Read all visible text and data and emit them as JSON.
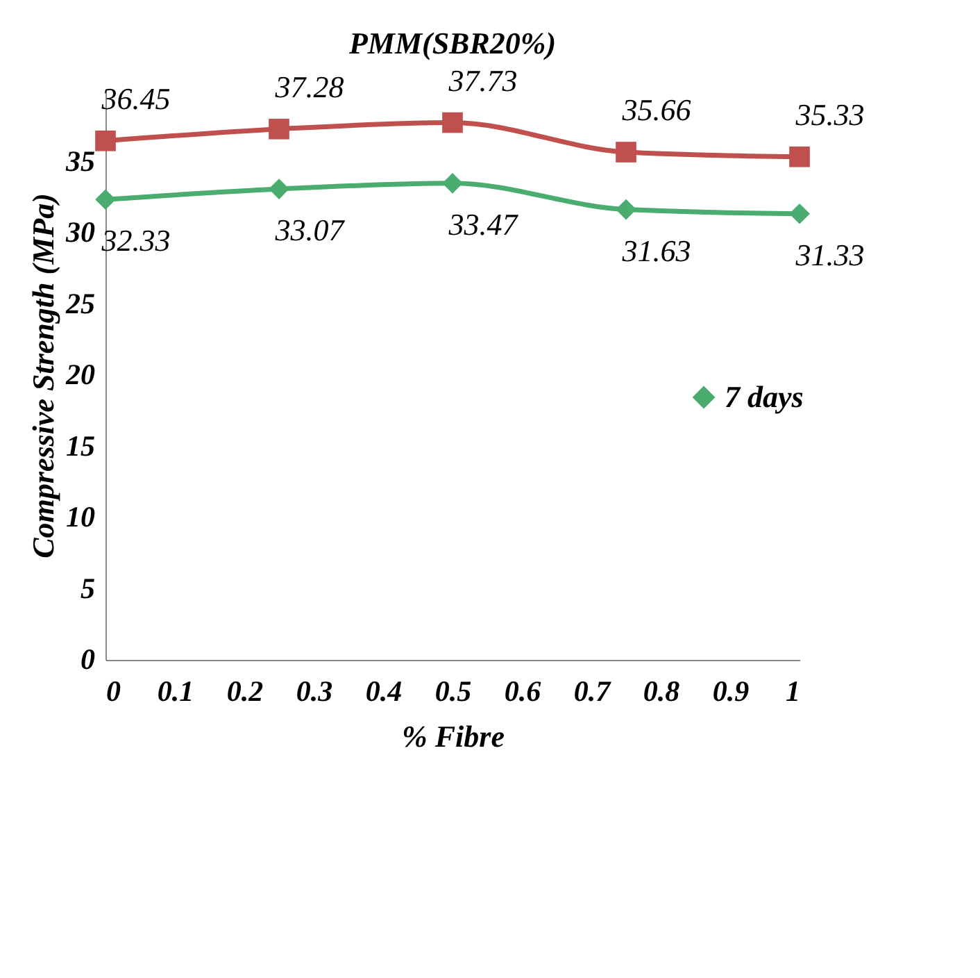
{
  "chart_data": {
    "type": "line",
    "title": "PMM(SBR20%)",
    "xlabel": "% Fibre",
    "ylabel": "Compressive Strength (MPa)",
    "x": [
      0,
      0.25,
      0.5,
      0.75,
      1
    ],
    "series": [
      {
        "color": "#c0504d",
        "marker": "square",
        "values": [
          36.45,
          37.28,
          37.73,
          35.66,
          35.33
        ]
      },
      {
        "name": "7 days",
        "color": "#4bac6f",
        "marker": "diamond",
        "values": [
          32.33,
          33.07,
          33.47,
          31.63,
          31.33
        ]
      }
    ],
    "xlim": [
      0,
      1
    ],
    "xticks": [
      0,
      0.1,
      0.2,
      0.3,
      0.4,
      0.5,
      0.6,
      0.7,
      0.8,
      0.9,
      1
    ],
    "ylim": [
      0,
      40
    ],
    "yticks": [
      0,
      5,
      10,
      15,
      20,
      25,
      30,
      35
    ],
    "data_labels": true,
    "grid": false,
    "legend": "right"
  }
}
